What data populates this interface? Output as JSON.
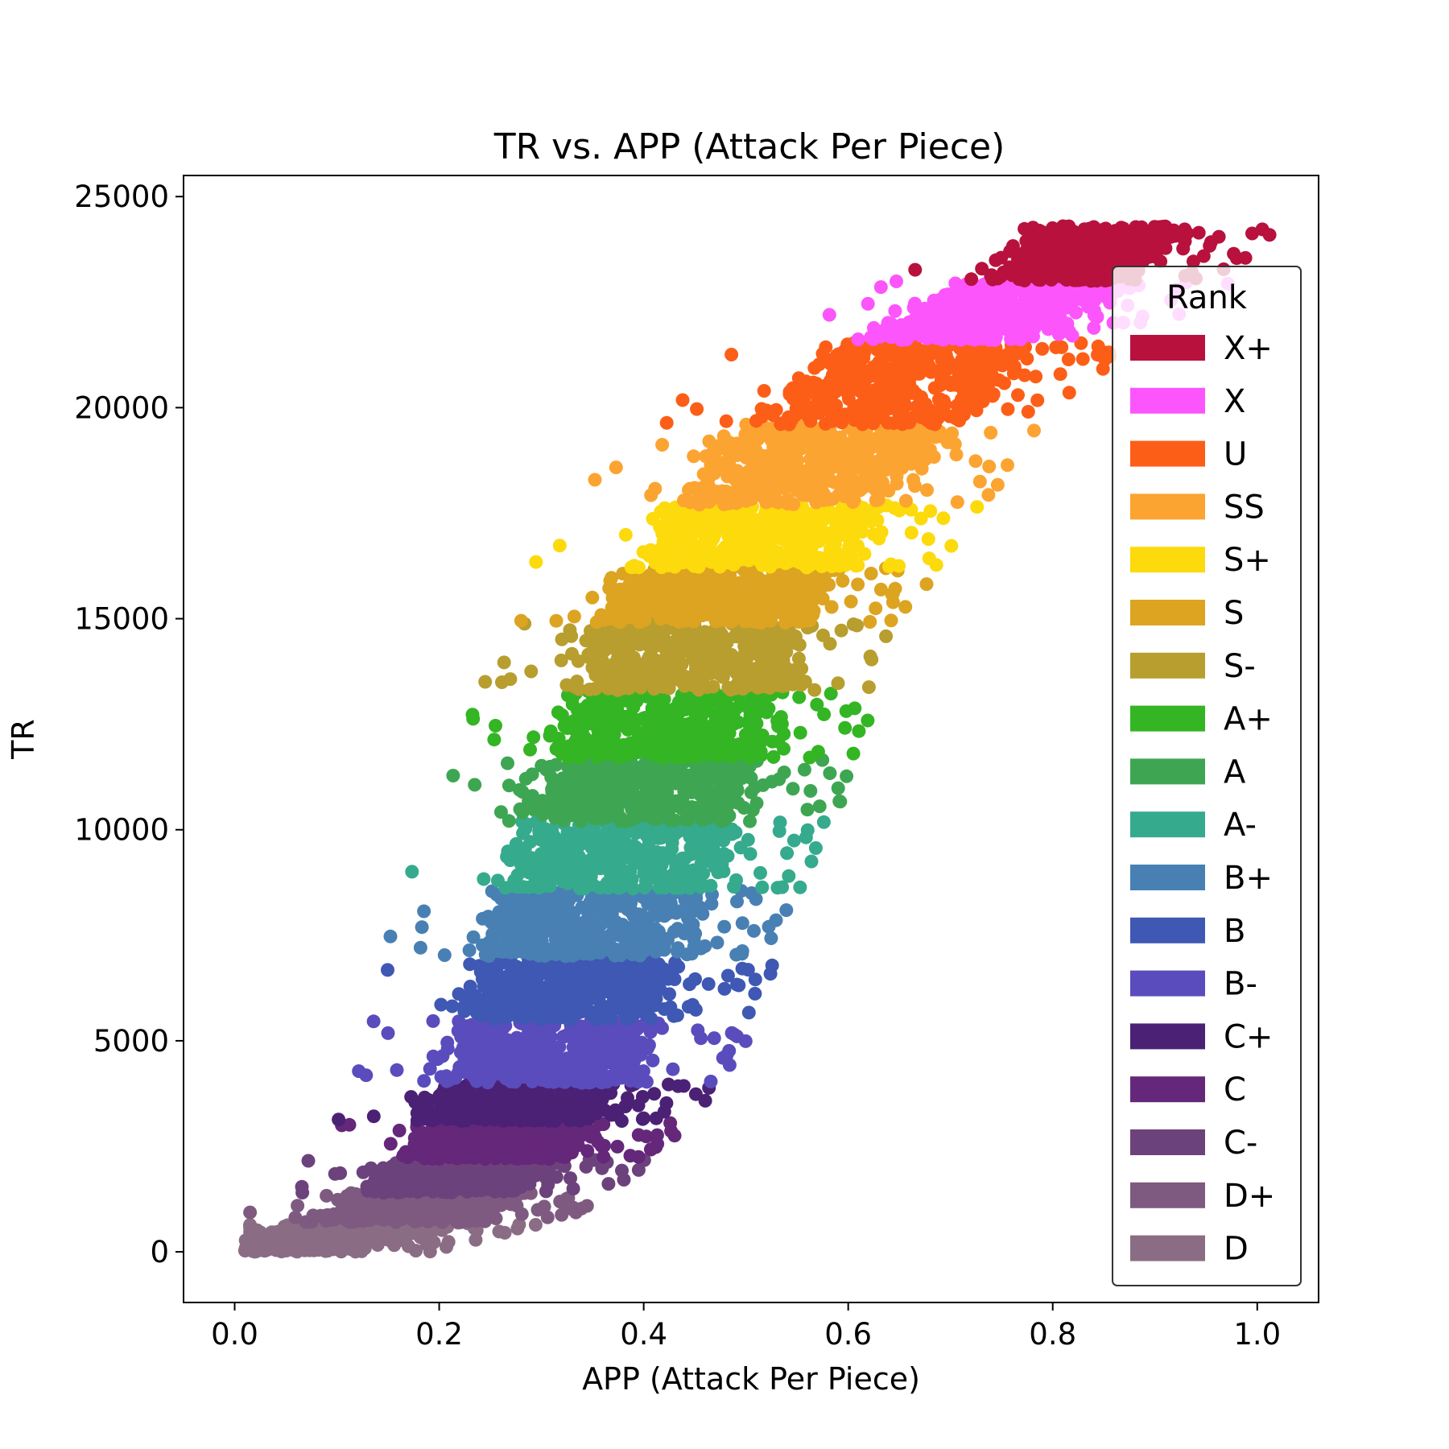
{
  "chart_data": {
    "type": "scatter",
    "title": "TR vs. APP (Attack Per Piece)",
    "xlabel": "APP (Attack Per Piece)",
    "ylabel": "TR",
    "xlim": [
      -0.05,
      1.06
    ],
    "ylim": [
      -1200,
      25500
    ],
    "xticks": [
      0.0,
      0.2,
      0.4,
      0.6,
      0.8,
      1.0
    ],
    "xtick_labels": [
      "0.0",
      "0.2",
      "0.4",
      "0.6",
      "0.8",
      "1.0"
    ],
    "yticks": [
      0,
      5000,
      10000,
      15000,
      20000,
      25000
    ],
    "ytick_labels": [
      "0",
      "5000",
      "10000",
      "15000",
      "20000",
      "25000"
    ],
    "grid": false,
    "legend": {
      "title": "Rank",
      "position": "right"
    },
    "series": [
      {
        "name": "D",
        "color": "#8a6d85",
        "tr_range": [
          0,
          700
        ],
        "app_center_range": [
          0.02,
          0.15
        ],
        "app_spread": 0.16
      },
      {
        "name": "D+",
        "color": "#7f5a80",
        "tr_range": [
          700,
          1400
        ],
        "app_center_range": [
          0.15,
          0.2
        ],
        "app_spread": 0.15
      },
      {
        "name": "C-",
        "color": "#6c427c",
        "tr_range": [
          1400,
          2200
        ],
        "app_center_range": [
          0.2,
          0.24
        ],
        "app_spread": 0.15
      },
      {
        "name": "C",
        "color": "#65277a",
        "tr_range": [
          2200,
          3100
        ],
        "app_center_range": [
          0.24,
          0.27
        ],
        "app_spread": 0.15
      },
      {
        "name": "C+",
        "color": "#4b2175",
        "tr_range": [
          3100,
          4000
        ],
        "app_center_range": [
          0.27,
          0.29
        ],
        "app_spread": 0.16
      },
      {
        "name": "B-",
        "color": "#5a4cbd",
        "tr_range": [
          4000,
          5500
        ],
        "app_center_range": [
          0.29,
          0.32
        ],
        "app_spread": 0.18
      },
      {
        "name": "B",
        "color": "#3f58b3",
        "tr_range": [
          5500,
          7000
        ],
        "app_center_range": [
          0.32,
          0.34
        ],
        "app_spread": 0.18
      },
      {
        "name": "B+",
        "color": "#4880b4",
        "tr_range": [
          7000,
          8600
        ],
        "app_center_range": [
          0.34,
          0.36
        ],
        "app_spread": 0.19
      },
      {
        "name": "A-",
        "color": "#36aa8d",
        "tr_range": [
          8600,
          10200
        ],
        "app_center_range": [
          0.36,
          0.39
        ],
        "app_spread": 0.19
      },
      {
        "name": "A",
        "color": "#3ea652",
        "tr_range": [
          10200,
          11700
        ],
        "app_center_range": [
          0.39,
          0.41
        ],
        "app_spread": 0.2
      },
      {
        "name": "A+",
        "color": "#34b524",
        "tr_range": [
          11700,
          13300
        ],
        "app_center_range": [
          0.41,
          0.44
        ],
        "app_spread": 0.2
      },
      {
        "name": "S-",
        "color": "#b79e2e",
        "tr_range": [
          13300,
          14900
        ],
        "app_center_range": [
          0.44,
          0.46
        ],
        "app_spread": 0.2
      },
      {
        "name": "S",
        "color": "#dca421",
        "tr_range": [
          14900,
          16200
        ],
        "app_center_range": [
          0.46,
          0.49
        ],
        "app_spread": 0.2
      },
      {
        "name": "S+",
        "color": "#fcda0c",
        "tr_range": [
          16200,
          17700
        ],
        "app_center_range": [
          0.49,
          0.53
        ],
        "app_spread": 0.2
      },
      {
        "name": "SS",
        "color": "#fca431",
        "tr_range": [
          17700,
          19600
        ],
        "app_center_range": [
          0.53,
          0.6
        ],
        "app_spread": 0.2
      },
      {
        "name": "U",
        "color": "#fc5e18",
        "tr_range": [
          19600,
          21600
        ],
        "app_center_range": [
          0.6,
          0.7
        ],
        "app_spread": 0.2
      },
      {
        "name": "X",
        "color": "#fc55fc",
        "tr_range": [
          21600,
          23000
        ],
        "app_center_range": [
          0.7,
          0.8
        ],
        "app_spread": 0.16
      },
      {
        "name": "X+",
        "color": "#b8113e",
        "tr_range": [
          23000,
          24300
        ],
        "app_center_range": [
          0.8,
          0.86
        ],
        "app_spread": 0.13
      }
    ]
  }
}
